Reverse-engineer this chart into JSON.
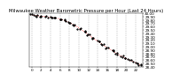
{
  "title": "Milwaukee Weather Barometric Pressure per Hour (Last 24 Hours)",
  "x_hours": [
    0,
    1,
    2,
    3,
    4,
    5,
    6,
    7,
    8,
    9,
    10,
    11,
    12,
    13,
    14,
    15,
    16,
    17,
    18,
    19,
    20,
    21,
    22,
    23
  ],
  "pressure": [
    29.95,
    29.93,
    29.91,
    29.9,
    29.88,
    29.86,
    29.83,
    29.78,
    29.72,
    29.65,
    29.55,
    29.46,
    29.36,
    29.26,
    29.16,
    29.06,
    28.97,
    28.88,
    28.8,
    28.72,
    28.65,
    28.58,
    28.52,
    28.46
  ],
  "ylim_min": 28.4,
  "ylim_max": 30.0,
  "ytick_step": 0.1,
  "line_color": "#ff0000",
  "marker_color": "#000000",
  "bg_color": "#ffffff",
  "grid_color": "#888888",
  "title_fontsize": 3.8,
  "tick_fontsize": 3.0,
  "ylabel_fontsize": 3.0,
  "line_width": 0.5,
  "marker_size": 1.2
}
